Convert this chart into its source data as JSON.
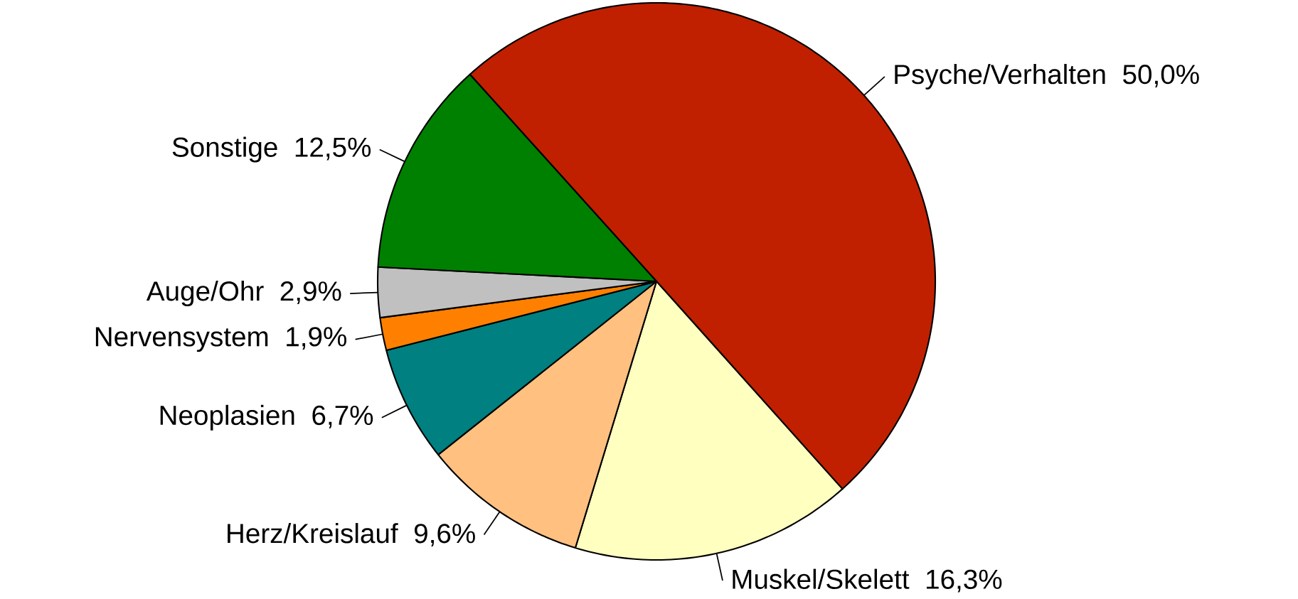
{
  "chart_data": {
    "type": "pie",
    "categories": [
      "Psyche/Verhalten",
      "Muskel/Skelett",
      "Herz/Kreislauf",
      "Neoplasien",
      "Nervensystem",
      "Auge/Ohr",
      "Sonstige"
    ],
    "values": [
      50.0,
      16.3,
      9.6,
      6.7,
      1.9,
      2.9,
      12.5
    ],
    "colors": [
      "#c02000",
      "#ffffc0",
      "#ffc080",
      "#008080",
      "#ff8000",
      "#c0c0c0",
      "#008000"
    ],
    "value_labels": [
      "50,0%",
      "16,3%",
      "9,6%",
      "6,7%",
      "1,9%",
      "2,9%",
      "12,5%"
    ]
  }
}
